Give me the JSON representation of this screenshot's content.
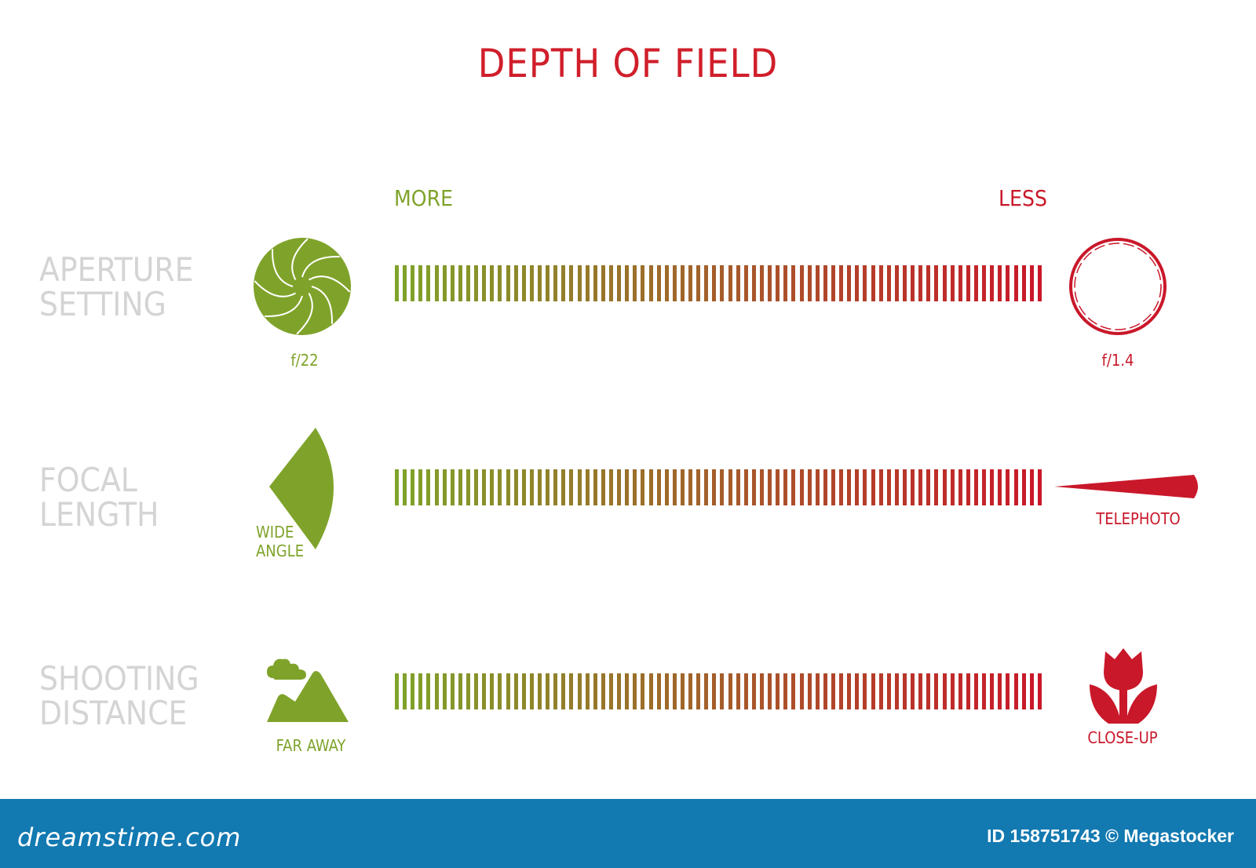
{
  "title": "DEPTH OF FIELD",
  "scale": {
    "more": "MORE",
    "less": "LESS"
  },
  "rows": [
    {
      "label_line1": "APERTURE",
      "label_line2": "SETTING",
      "left_caption": "f/22",
      "right_caption": "f/1.4",
      "left_icon": "aperture-closed-icon",
      "right_icon": "aperture-open-icon"
    },
    {
      "label_line1": "FOCAL",
      "label_line2": "LENGTH",
      "left_caption_line1": "WIDE",
      "left_caption_line2": "ANGLE",
      "right_caption": "TELEPHOTO",
      "left_icon": "wide-angle-icon",
      "right_icon": "telephoto-icon"
    },
    {
      "label_line1": "SHOOTING",
      "label_line2": "DISTANCE",
      "left_caption": "FAR AWAY",
      "right_caption": "CLOSE-UP",
      "left_icon": "landscape-icon",
      "right_icon": "macro-flower-icon"
    }
  ],
  "colors": {
    "more": "#7fa32a",
    "less": "#c9182a",
    "label": "#d4d4d4",
    "footer": "#1279b1"
  },
  "footer": {
    "brand": "dreamstime.com",
    "id_text": "ID 158751743 © Megastocker"
  }
}
